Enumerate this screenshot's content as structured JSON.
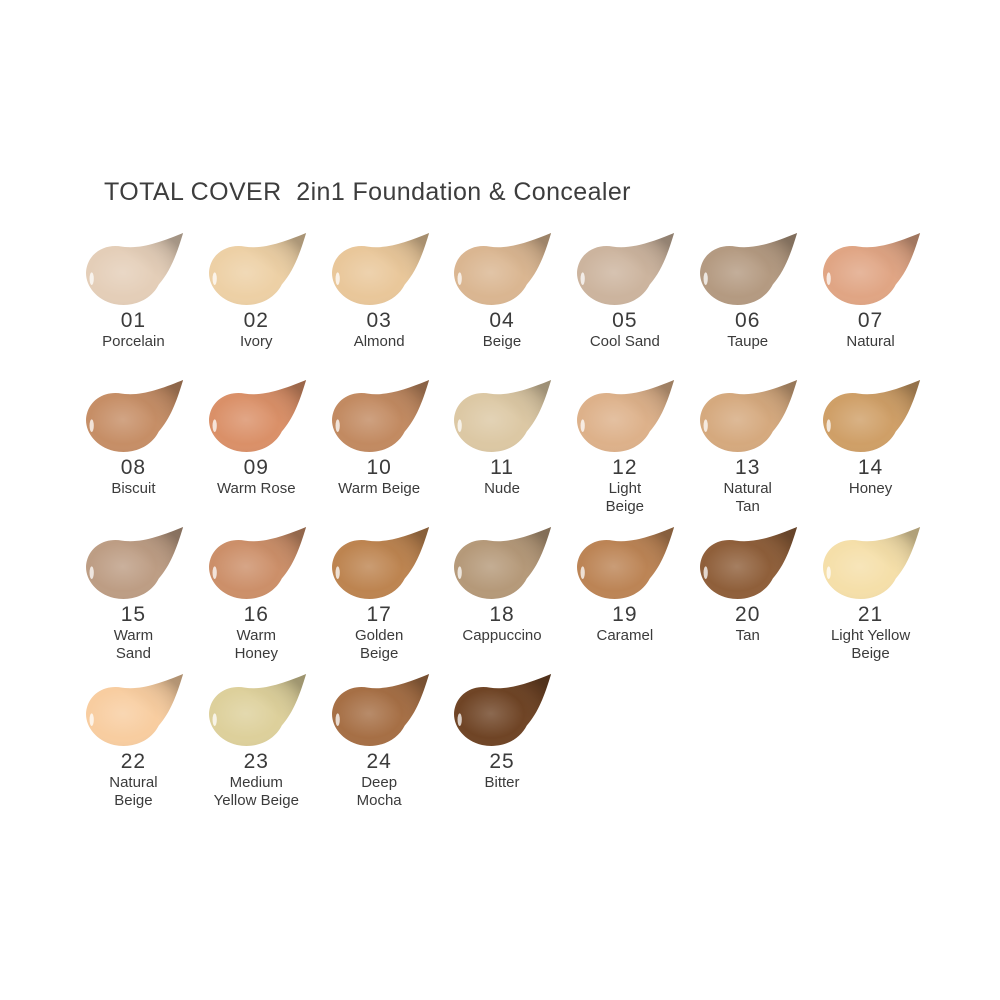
{
  "page": {
    "background": "#ffffff",
    "text_color": "#3b3b3b"
  },
  "title": "TOTAL COVER  2in1 Foundation & Concealer",
  "shades": [
    {
      "number": "01",
      "name_lines": [
        "Porcelain"
      ],
      "color": "#e4ceb8"
    },
    {
      "number": "02",
      "name_lines": [
        "Ivory"
      ],
      "color": "#edd0a5"
    },
    {
      "number": "03",
      "name_lines": [
        "Almond"
      ],
      "color": "#e9c79a"
    },
    {
      "number": "04",
      "name_lines": [
        "Beige"
      ],
      "color": "#dab691"
    },
    {
      "number": "05",
      "name_lines": [
        "Cool Sand"
      ],
      "color": "#ccb49e"
    },
    {
      "number": "06",
      "name_lines": [
        "Taupe"
      ],
      "color": "#b49a81"
    },
    {
      "number": "07",
      "name_lines": [
        "Natural"
      ],
      "color": "#e0a584"
    },
    {
      "number": "08",
      "name_lines": [
        "Biscuit"
      ],
      "color": "#c68e66"
    },
    {
      "number": "09",
      "name_lines": [
        "Warm Rose"
      ],
      "color": "#da9068"
    },
    {
      "number": "10",
      "name_lines": [
        "Warm Beige"
      ],
      "color": "#c28a61"
    },
    {
      "number": "11",
      "name_lines": [
        "Nude"
      ],
      "color": "#dcc8a4"
    },
    {
      "number": "12",
      "name_lines": [
        "Light",
        "Beige"
      ],
      "color": "#ddb18a"
    },
    {
      "number": "13",
      "name_lines": [
        "Natural",
        "Tan"
      ],
      "color": "#d5a97e"
    },
    {
      "number": "14",
      "name_lines": [
        "Honey"
      ],
      "color": "#cf9f67"
    },
    {
      "number": "15",
      "name_lines": [
        "Warm",
        "Sand"
      ],
      "color": "#bd9d84"
    },
    {
      "number": "16",
      "name_lines": [
        "Warm",
        "Honey"
      ],
      "color": "#cc8f69"
    },
    {
      "number": "17",
      "name_lines": [
        "Golden",
        "Beige"
      ],
      "color": "#bd8450"
    },
    {
      "number": "18",
      "name_lines": [
        "Cappuccino"
      ],
      "color": "#b59979"
    },
    {
      "number": "19",
      "name_lines": [
        "Caramel"
      ],
      "color": "#bc8455"
    },
    {
      "number": "20",
      "name_lines": [
        "Tan"
      ],
      "color": "#8f5f3a"
    },
    {
      "number": "21",
      "name_lines": [
        "Light Yellow",
        "Beige"
      ],
      "color": "#f5dfa9"
    },
    {
      "number": "22",
      "name_lines": [
        "Natural",
        "Beige"
      ],
      "color": "#f8cda0"
    },
    {
      "number": "23",
      "name_lines": [
        "Medium",
        "Yellow Beige"
      ],
      "color": "#ddd09b"
    },
    {
      "number": "24",
      "name_lines": [
        "Deep",
        "Mocha"
      ],
      "color": "#a66f45"
    },
    {
      "number": "25",
      "name_lines": [
        "Bitter"
      ],
      "color": "#6f4425"
    }
  ]
}
